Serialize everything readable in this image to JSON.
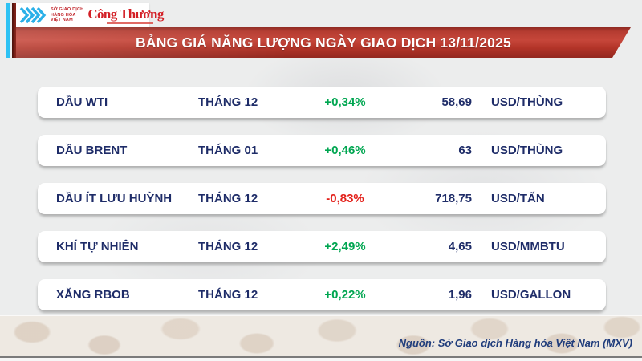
{
  "header": {
    "mxv_text": [
      "SỞ GIAO DỊCH",
      "HÀNG HÓA",
      "VIỆT NAM"
    ],
    "congthuong_logo": "Công Thương",
    "title": "BẢNG GIÁ NĂNG LƯỢNG NGÀY GIAO DỊCH 13/11/2025"
  },
  "footer": {
    "source_note": "Nguồn: Sở Giao dịch Hàng hóa Việt Nam (MXV)"
  },
  "colors": {
    "positive_change": "#00a651",
    "negative_change": "#e3201a",
    "text_navy": "#1e2c68",
    "banner_red": "#c0392b",
    "accent_cyan_bar": "#2ec2f4",
    "accent_maroon_bar": "#6b1a12"
  },
  "chart_data": {
    "type": "table",
    "title": "BẢNG GIÁ NĂNG LƯỢNG NGÀY GIAO DỊCH 13/11/2025",
    "columns": [
      "commodity",
      "contract_month",
      "change_percent",
      "price",
      "unit"
    ],
    "rows": [
      {
        "name": "DẦU WTI",
        "month": "THÁNG 12",
        "change": "+0,34%",
        "price": "58,69",
        "unit": "USD/THÙNG"
      },
      {
        "name": "DẦU BRENT",
        "month": "THÁNG 01",
        "change": "+0,46%",
        "price": "63",
        "unit": "USD/THÙNG"
      },
      {
        "name": "DẦU ÍT LƯU HUỲNH",
        "month": "THÁNG 12",
        "change": "-0,83%",
        "price": "718,75",
        "unit": "USD/TẤN"
      },
      {
        "name": "KHÍ TỰ NHIÊN",
        "month": "THÁNG 12",
        "change": "+2,49%",
        "price": "4,65",
        "unit": "USD/MMBTU"
      },
      {
        "name": "XĂNG RBOB",
        "month": "THÁNG 12",
        "change": "+0,22%",
        "price": "1,96",
        "unit": "USD/GALLON"
      }
    ]
  }
}
